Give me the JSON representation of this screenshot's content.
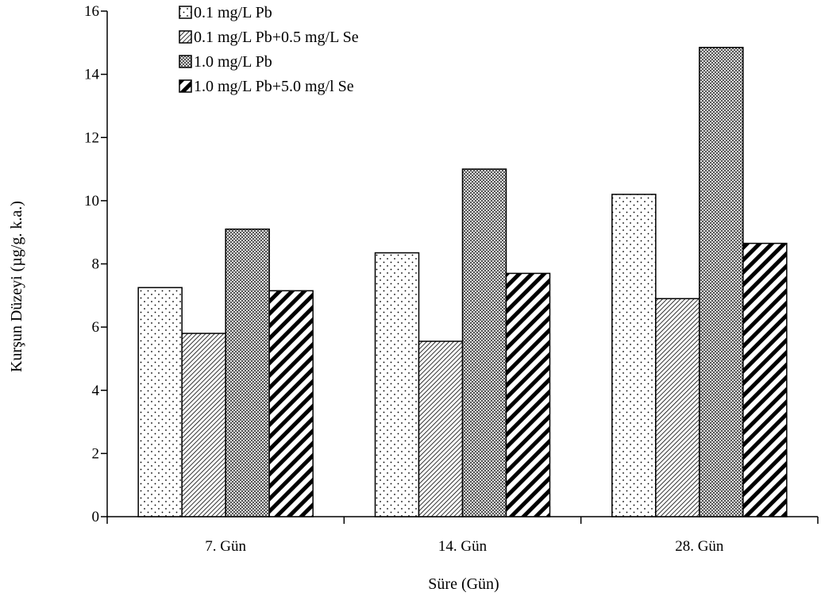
{
  "chart_data": {
    "type": "bar",
    "categories": [
      "7. Gün",
      "14. Gün",
      "28. Gün"
    ],
    "series": [
      {
        "name": "0.1 mg/L Pb",
        "values": [
          7.25,
          8.35,
          10.2
        ],
        "pattern": "dots"
      },
      {
        "name": "0.1 mg/L Pb+0.5 mg/L Se",
        "values": [
          5.8,
          5.55,
          6.9
        ],
        "pattern": "fine-diagonal"
      },
      {
        "name": "1.0 mg/L Pb",
        "values": [
          9.1,
          11.0,
          14.85
        ],
        "pattern": "dense-grid"
      },
      {
        "name": "1.0 mg/L Pb+5.0 mg/l Se",
        "values": [
          7.15,
          7.7,
          8.65
        ],
        "pattern": "bold-diagonal"
      }
    ],
    "xlabel": "Süre (Gün)",
    "ylabel": "Kurşun Düzeyi (µg/g. k.a.)",
    "ylim": [
      0,
      16
    ],
    "yticks": [
      "0",
      "2",
      "4",
      "6",
      "8",
      "10",
      "12",
      "14",
      "16"
    ],
    "grid": false,
    "legend_position": "top-left"
  }
}
